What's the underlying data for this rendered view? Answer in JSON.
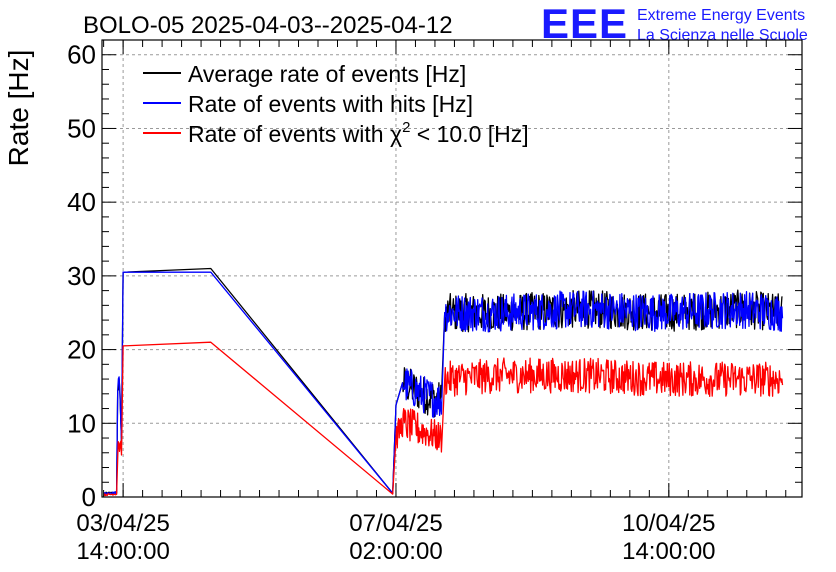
{
  "title": "BOLO-05 2025-04-03--2025-04-12",
  "logo": {
    "text": "EEE",
    "line1": "Extreme Energy Events",
    "line2": "La Scienza nelle Scuole",
    "color": "#1a1aff"
  },
  "chart_data": {
    "type": "line",
    "title": "BOLO-05 2025-04-03--2025-04-12",
    "ylabel": "Rate [Hz]",
    "xlabel": "",
    "ylim": [
      0,
      62
    ],
    "yticks": [
      0,
      10,
      20,
      30,
      40,
      50,
      60
    ],
    "y_tick_labels": [
      "0",
      "10",
      "20",
      "30",
      "40",
      "50",
      "60"
    ],
    "x_axis": {
      "type": "datetime",
      "range": [
        "2025-04-03 07:30",
        "2025-04-12 07:00"
      ],
      "tick_labels": [
        {
          "date": "03/04/25",
          "time": "14:00:00",
          "at": "2025-04-03 14:00"
        },
        {
          "date": "07/04/25",
          "time": "02:00:00",
          "at": "2025-04-07 02:00"
        },
        {
          "date": "10/04/25",
          "time": "14:00:00",
          "at": "2025-04-10 14:00"
        }
      ]
    },
    "grid": true,
    "legend": {
      "placement": "top-left",
      "entries": [
        {
          "pre": "Average rate of events [Hz]",
          "sup": "",
          "post": ""
        },
        {
          "pre": "Rate of events with hits [Hz]",
          "sup": "",
          "post": ""
        },
        {
          "pre": "Rate of events with χ",
          "sup": "2",
          "post": " < 10.0 [Hz]"
        }
      ]
    },
    "series": [
      {
        "name": "Average rate of events [Hz]",
        "color": "#000000",
        "points": [
          [
            "2025-04-03 08:00",
            0.5
          ],
          [
            "2025-04-03 12:00",
            0.6
          ],
          [
            "2025-04-03 12:20",
            14.5
          ],
          [
            "2025-04-03 13:00",
            15.0
          ],
          [
            "2025-04-03 13:30",
            7.5
          ],
          [
            "2025-04-03 14:00",
            30.5
          ],
          [
            "2025-04-04 17:00",
            31.0
          ],
          [
            "2025-04-07 01:00",
            0.5
          ],
          [
            "2025-04-07 02:00",
            12.5
          ],
          [
            "2025-04-07 04:00",
            15.5
          ],
          [
            "2025-04-07 10:00",
            14.0
          ],
          [
            "2025-04-07 16:00",
            13.0
          ],
          [
            "2025-04-07 17:00",
            25.0
          ],
          [
            "2025-04-08 12:00",
            25.0
          ],
          [
            "2025-04-09 12:00",
            25.5
          ],
          [
            "2025-04-10 12:00",
            25.0
          ],
          [
            "2025-04-11 12:00",
            25.5
          ],
          [
            "2025-04-12 01:00",
            25.0
          ]
        ]
      },
      {
        "name": "Rate of events with hits [Hz]",
        "color": "#0000ff",
        "points": [
          [
            "2025-04-03 08:00",
            0.5
          ],
          [
            "2025-04-03 12:00",
            0.6
          ],
          [
            "2025-04-03 12:20",
            14.5
          ],
          [
            "2025-04-03 13:00",
            15.0
          ],
          [
            "2025-04-03 13:30",
            7.5
          ],
          [
            "2025-04-03 14:00",
            30.5
          ],
          [
            "2025-04-04 17:00",
            30.5
          ],
          [
            "2025-04-07 01:00",
            0.5
          ],
          [
            "2025-04-07 02:00",
            12.5
          ],
          [
            "2025-04-07 04:00",
            15.5
          ],
          [
            "2025-04-07 10:00",
            14.0
          ],
          [
            "2025-04-07 16:00",
            13.0
          ],
          [
            "2025-04-07 17:00",
            25.0
          ],
          [
            "2025-04-08 12:00",
            25.0
          ],
          [
            "2025-04-09 12:00",
            25.5
          ],
          [
            "2025-04-10 12:00",
            25.0
          ],
          [
            "2025-04-11 12:00",
            25.5
          ],
          [
            "2025-04-12 01:00",
            25.0
          ]
        ]
      },
      {
        "name": "Rate of events with χ2 < 10.0 [Hz]",
        "color": "#ff0000",
        "points": [
          [
            "2025-04-03 08:00",
            0.3
          ],
          [
            "2025-04-03 12:00",
            0.4
          ],
          [
            "2025-04-03 12:30",
            7.5
          ],
          [
            "2025-04-03 13:30",
            7.0
          ],
          [
            "2025-04-03 14:00",
            20.5
          ],
          [
            "2025-04-04 17:00",
            21.0
          ],
          [
            "2025-04-07 01:00",
            0.4
          ],
          [
            "2025-04-07 02:00",
            8.0
          ],
          [
            "2025-04-07 04:00",
            10.0
          ],
          [
            "2025-04-07 10:00",
            9.0
          ],
          [
            "2025-04-07 16:00",
            8.0
          ],
          [
            "2025-04-07 17:00",
            16.0
          ],
          [
            "2025-04-08 12:00",
            16.5
          ],
          [
            "2025-04-09 12:00",
            16.5
          ],
          [
            "2025-04-10 12:00",
            16.0
          ],
          [
            "2025-04-11 12:00",
            16.0
          ],
          [
            "2025-04-12 01:00",
            16.0
          ]
        ]
      }
    ]
  }
}
